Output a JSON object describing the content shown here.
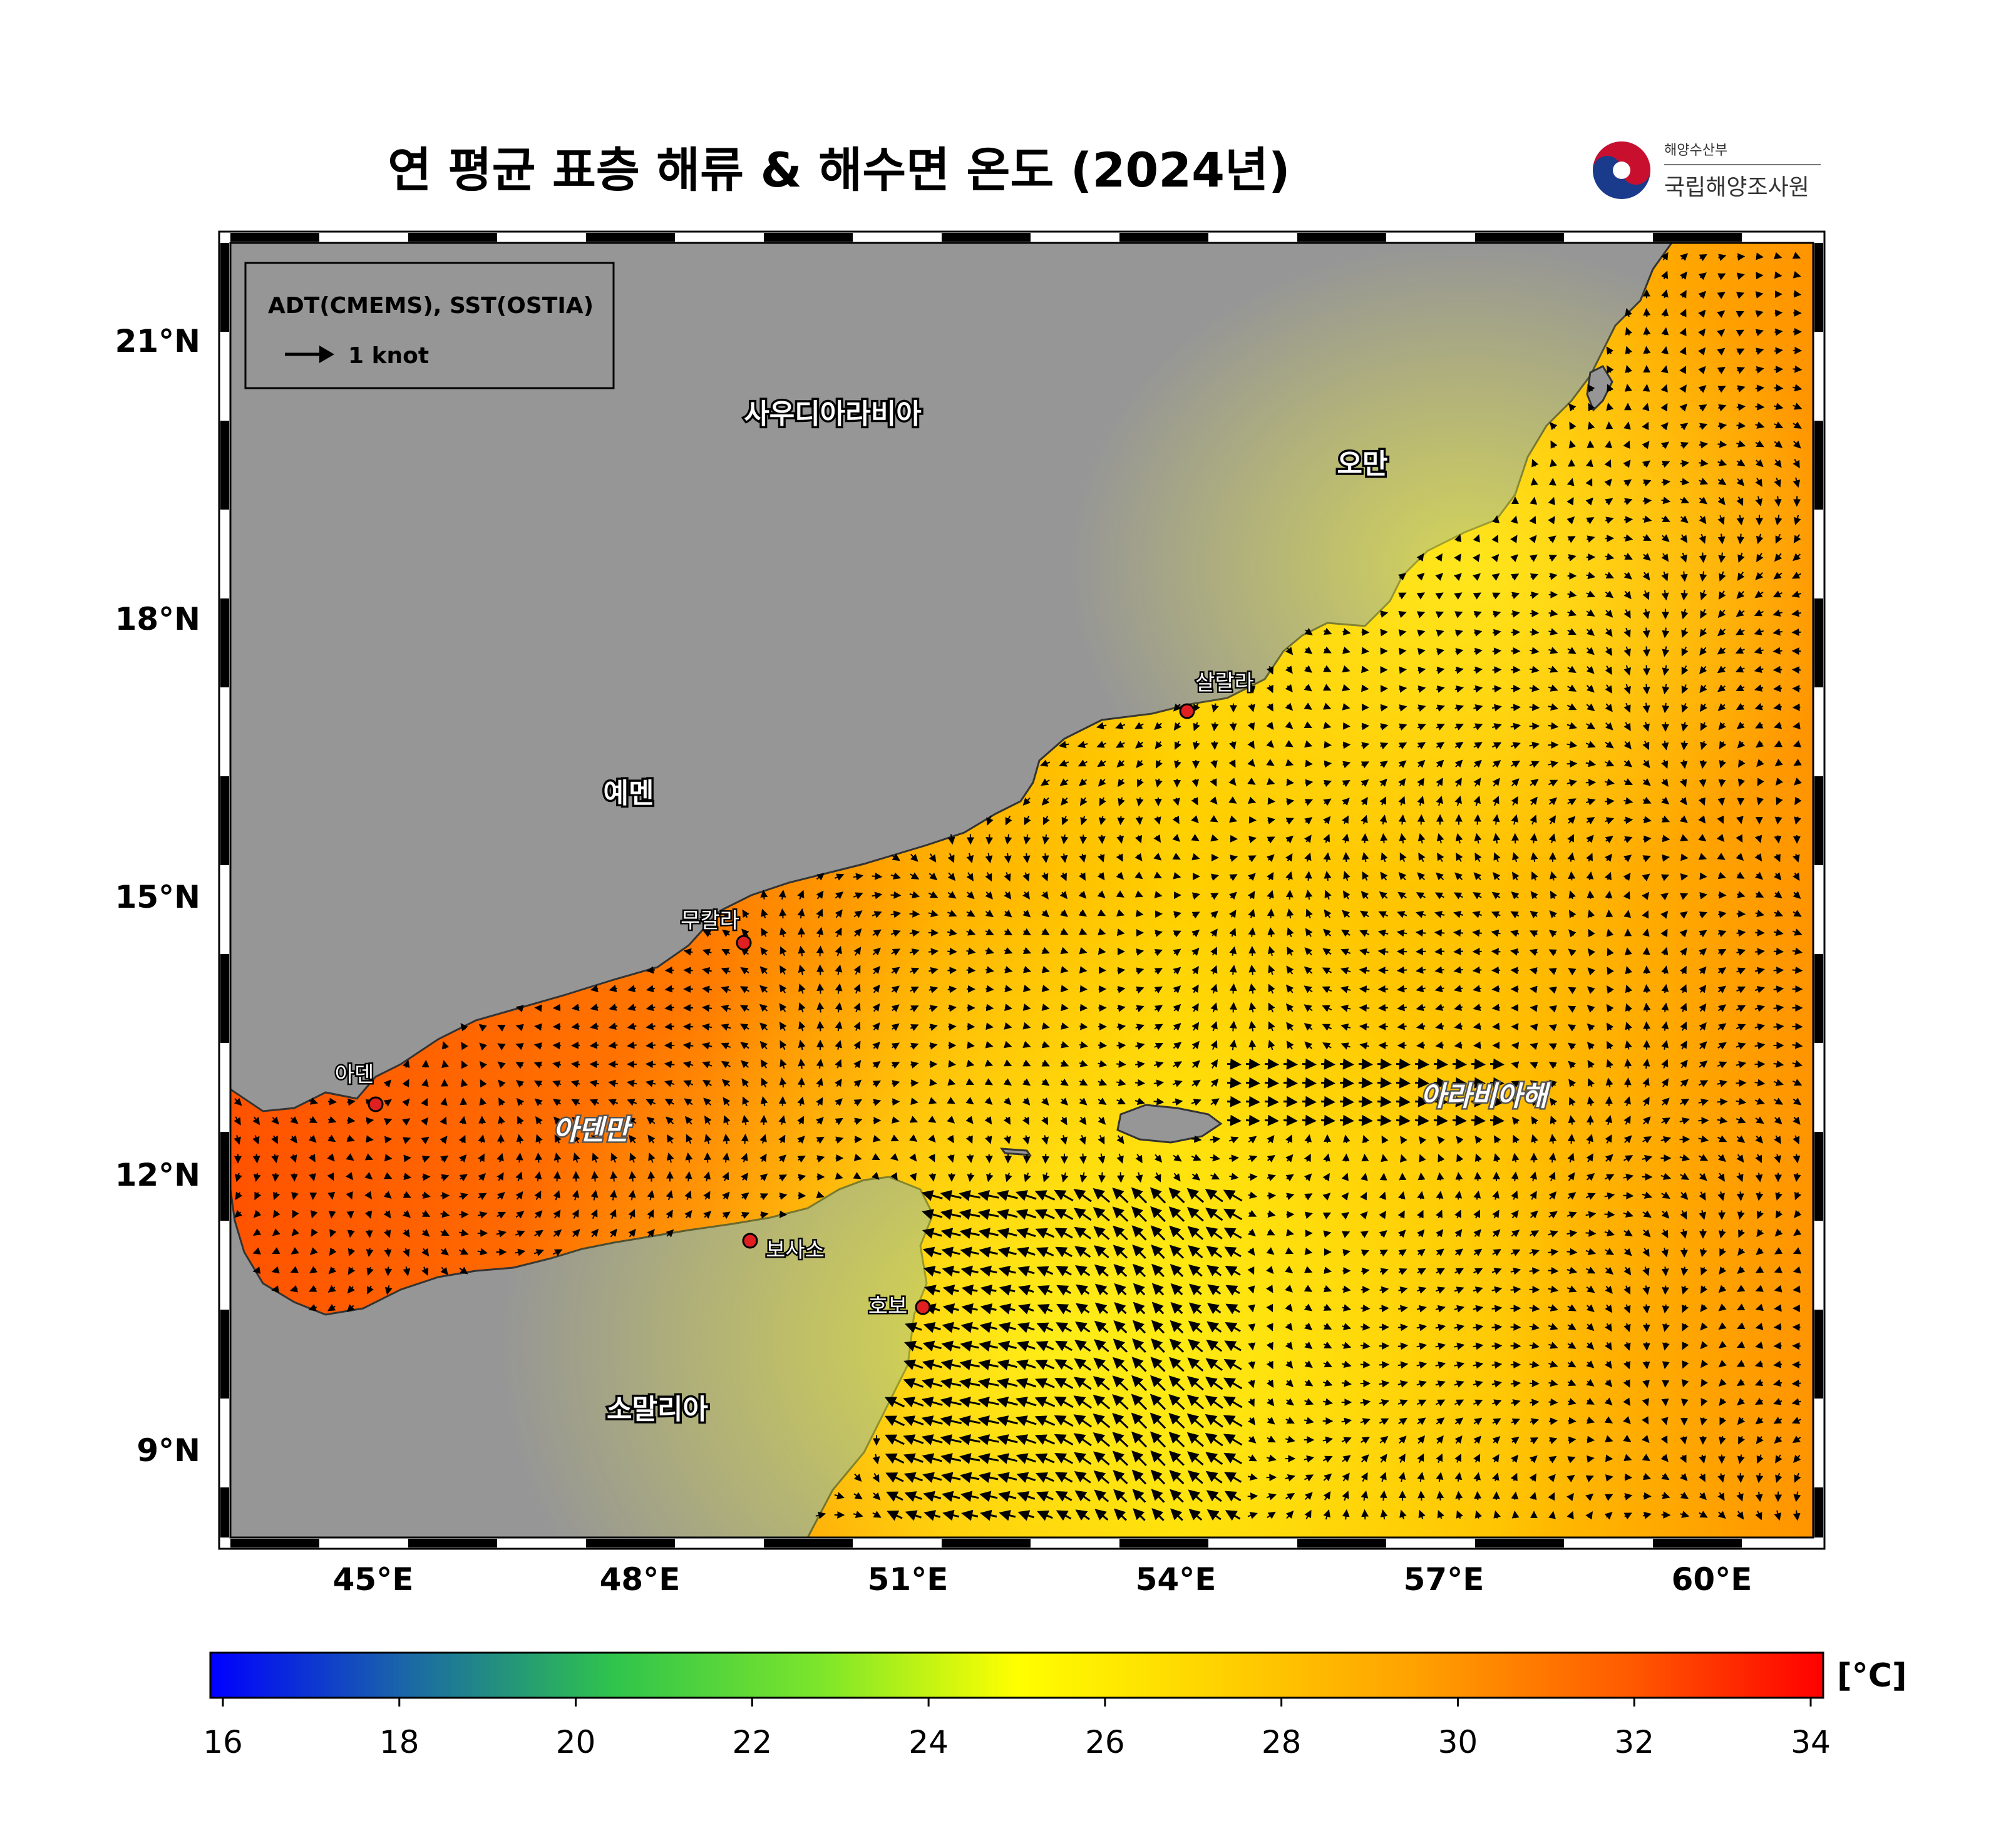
{
  "title": "연 평균 표층 해류 & 해수면 온도 (2024년)",
  "agency": {
    "ministry": "해양수산부",
    "name": "국립해양조사원"
  },
  "legend": {
    "source": "ADT(CMEMS), SST(OSTIA)",
    "vector_label": "1 knot"
  },
  "axes": {
    "x_ticks": [
      "45°E",
      "48°E",
      "51°E",
      "54°E",
      "57°E",
      "60°E"
    ],
    "y_ticks": [
      "21°N",
      "18°N",
      "15°N",
      "12°N",
      "9°N"
    ],
    "lon_range": [
      43.3,
      61.2
    ],
    "lat_range": [
      8.0,
      22.2
    ]
  },
  "labels": {
    "countries": [
      {
        "name": "사우디아라비아",
        "lon": 48.9,
        "lat": 20.3
      },
      {
        "name": "오만",
        "lon": 56.3,
        "lat": 19.6
      },
      {
        "name": "예멘",
        "lon": 46.8,
        "lat": 16.2
      },
      {
        "name": "소말리아",
        "lon": 47.3,
        "lat": 9.4
      }
    ],
    "seas": [
      {
        "name": "아덴만",
        "lon": 45.8,
        "lat": 12.5
      },
      {
        "name": "아라비아해",
        "lon": 57.5,
        "lat": 12.8
      }
    ],
    "cities": [
      {
        "name": "살랄라",
        "lon": 54.1,
        "lat": 17.05
      },
      {
        "name": "무칼라",
        "lon": 49.2,
        "lat": 14.55
      },
      {
        "name": "아덴",
        "lon": 45.0,
        "lat": 12.8
      },
      {
        "name": "보사소",
        "lon": 49.2,
        "lat": 11.3
      },
      {
        "name": "호보",
        "lon": 51.1,
        "lat": 10.6
      }
    ]
  },
  "colorbar": {
    "ticks": [
      "16",
      "18",
      "20",
      "22",
      "24",
      "26",
      "28",
      "30",
      "32",
      "34"
    ],
    "min": 16,
    "max": 34,
    "unit": "[°C]",
    "colors": [
      "#0000ff",
      "#1a66a8",
      "#2ec24a",
      "#66e033",
      "#ffff00",
      "#ffcc00",
      "#ff9900",
      "#ff3300",
      "#ff0000"
    ]
  },
  "colors": {
    "land": "#969696",
    "sst_warm": "#ff5a00",
    "sst_mid": "#ffa500",
    "sst_cool": "#ffe100",
    "arrow": "#000000"
  }
}
